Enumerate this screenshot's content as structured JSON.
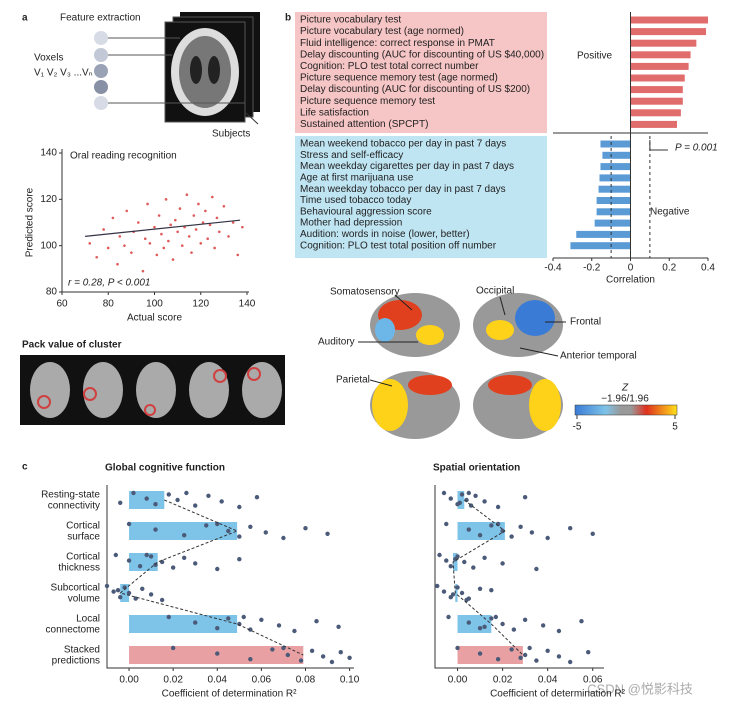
{
  "panel_labels": [
    "a",
    "b",
    "c"
  ],
  "feature_extraction": {
    "title": "Feature extraction",
    "voxels_label": "Voxels",
    "voxel_series": "V₁ V₂ V₃ ...Vₙ",
    "subjects_label": "Subjects"
  },
  "cluster_title": "Pack value of cluster",
  "brain_map": {
    "labels": [
      "Somatosensory",
      "Occipital",
      "Frontal",
      "Auditory",
      "Anterior temporal",
      "Parietal"
    ],
    "colorbar": {
      "title": "Z",
      "threshold_label": "−1.96/1.96",
      "ticks": [
        -5,
        5
      ]
    }
  },
  "watermark": "CSDN @悦影科技",
  "chart_data": [
    {
      "type": "scatter",
      "title": "Oral reading recognition",
      "x_label": "Actual score",
      "y_label": "Predicted score",
      "annotation": "r = 0.28, P < 0.001",
      "color": "#e05a5a",
      "x": [
        72,
        75,
        78,
        80,
        82,
        84,
        85,
        87,
        88,
        90,
        91,
        93,
        95,
        96,
        97,
        98,
        100,
        101,
        102,
        103,
        104,
        105,
        106,
        107,
        108,
        109,
        110,
        111,
        112,
        113,
        114,
        115,
        116,
        117,
        118,
        119,
        120,
        121,
        122,
        123,
        124,
        125,
        126,
        127,
        128,
        130,
        132,
        134,
        136,
        138
      ],
      "y": [
        101,
        95,
        107,
        99,
        112,
        92,
        104,
        100,
        115,
        97,
        106,
        110,
        89,
        103,
        118,
        101,
        108,
        96,
        113,
        105,
        99,
        120,
        102,
        109,
        94,
        111,
        106,
        116,
        100,
        108,
        122,
        104,
        97,
        113,
        107,
        118,
        101,
        110,
        115,
        103,
        109,
        121,
        99,
        112,
        106,
        117,
        104,
        110,
        96,
        108
      ],
      "fit_line": {
        "x": [
          70,
          137
        ],
        "y": [
          104,
          111
        ]
      },
      "xlim": [
        60,
        140
      ],
      "ylim": [
        80,
        140
      ],
      "xticks": [
        60,
        80,
        100,
        120,
        140
      ],
      "yticks": [
        80,
        100,
        120,
        140
      ]
    },
    {
      "type": "hbar",
      "x_label": "Correlation",
      "group_labels": [
        "Positive",
        "Negative"
      ],
      "annotation": "P = 0.001",
      "colors": {
        "positive": "#e06c6c",
        "negative": "#5b9bd5"
      },
      "categories": [
        "Picture vocabulary test",
        "Picture vocabulary test (age normed)",
        "Fluid intelligence: correct response in PMAT",
        "Delay discounting (AUC for discounting of US $40,000)",
        "Cognition: PLO test total correct number",
        "Picture sequence memory test (age normed)",
        "Delay discounting (AUC for discounting of US $200)",
        "Picture sequence memory test",
        "Life satisfaction",
        "Sustained attention (SPCPT)",
        "Mean weekend tobacco per day in past 7 days",
        "Stress and self-efficacy",
        "Mean weekday cigarettes per day in past 7 days",
        "Age at first marijuana use",
        "Mean weekday tobacco per day in past 7 days",
        "Time used tobacco today",
        "Behavioural aggression score",
        "Mother had depression",
        "Audition: words in noise (lower, better)",
        "Cognition: PLO test total position off number"
      ],
      "values": [
        0.4,
        0.39,
        0.34,
        0.31,
        0.3,
        0.28,
        0.27,
        0.27,
        0.26,
        0.24,
        -0.155,
        -0.145,
        -0.155,
        -0.16,
        -0.165,
        -0.175,
        -0.175,
        -0.185,
        -0.28,
        -0.31
      ],
      "significance_thresholds": [
        -0.1,
        0.1
      ],
      "xlim": [
        -0.4,
        0.4
      ],
      "xticks": [
        -0.4,
        -0.2,
        0,
        0.2,
        0.4
      ]
    },
    {
      "type": "pointbar",
      "title": "Global cognitive function",
      "x_label": "Coefficient of determination R²",
      "colors": {
        "bar": "#7ec3e8",
        "stacked": "#e8a0a3",
        "point": "#4a5a78"
      },
      "categories": [
        [
          "Resting-state",
          "connectivity"
        ],
        [
          "Cortical",
          "surface"
        ],
        [
          "Cortical",
          "thickness"
        ],
        [
          "Subcortical",
          "volume"
        ],
        [
          "Local",
          "connectome"
        ],
        [
          "Stacked",
          "predictions"
        ]
      ],
      "values": [
        0.016,
        0.049,
        0.013,
        -0.004,
        0.049,
        0.079
      ],
      "points": [
        [
          0.002,
          0.008,
          0.012,
          0.018,
          0.022,
          0.03,
          0.036,
          0.042,
          0.05,
          0.058,
          -0.004,
          0.026
        ],
        [
          0.0,
          0.012,
          0.025,
          0.035,
          0.045,
          0.05,
          0.055,
          0.062,
          0.07,
          0.08,
          0.09,
          0.04
        ],
        [
          -0.006,
          0.0,
          0.005,
          0.01,
          0.015,
          0.02,
          0.025,
          0.03,
          0.04,
          0.05,
          0.012,
          0.008
        ],
        [
          -0.01,
          -0.007,
          -0.004,
          -0.002,
          0.0,
          0.003,
          0.006,
          0.01,
          0.015,
          -0.005
        ],
        [
          0.018,
          0.03,
          0.04,
          0.045,
          0.05,
          0.055,
          0.06,
          0.068,
          0.075,
          0.085,
          0.095,
          0.052
        ],
        [
          0.02,
          0.04,
          0.055,
          0.065,
          0.072,
          0.078,
          0.083,
          0.088,
          0.092,
          0.096,
          0.1,
          0.07
        ]
      ],
      "xlim": [
        -0.01,
        0.102
      ],
      "xticks": [
        {
          "value": 0,
          "label": "0.00"
        },
        {
          "value": 0.02,
          "label": "0.02"
        },
        {
          "value": 0.04,
          "label": "0.04"
        },
        {
          "value": 0.06,
          "label": "0.06"
        },
        {
          "value": 0.08,
          "label": "0.08"
        },
        {
          "value": 0.1,
          "label": "0.10"
        }
      ]
    },
    {
      "type": "pointbar",
      "title": "Spatial orientation",
      "x_label": "Coefficient of determination R²",
      "colors": {
        "bar": "#7ec3e8",
        "stacked": "#e8a0a3",
        "point": "#4a5a78"
      },
      "categories": [
        [
          "Resting-state",
          "connectivity"
        ],
        [
          "Cortical",
          "surface"
        ],
        [
          "Cortical",
          "thickness"
        ],
        [
          "Subcortical",
          "volume"
        ],
        [
          "Local",
          "connectome"
        ],
        [
          "Stacked",
          "predictions"
        ]
      ],
      "values": [
        0.003,
        0.021,
        -0.002,
        -0.001,
        0.015,
        0.029
      ],
      "points": [
        [
          -0.006,
          -0.003,
          0,
          0.002,
          0.004,
          0.006,
          0.008,
          0.012,
          0.018,
          0.03,
          0.001,
          0.005
        ],
        [
          -0.005,
          0.005,
          0.01,
          0.015,
          0.02,
          0.024,
          0.028,
          0.033,
          0.04,
          0.05,
          0.06,
          0.018
        ],
        [
          -0.008,
          -0.005,
          -0.003,
          0,
          0.003,
          0.007,
          0.012,
          0.02,
          0.035,
          -0.001
        ],
        [
          -0.009,
          -0.006,
          -0.003,
          0,
          0.002,
          0.005,
          0.01,
          -0.002,
          0.004,
          0.015
        ],
        [
          -0.004,
          0.005,
          0.01,
          0.015,
          0.02,
          0.025,
          0.03,
          0.038,
          0.045,
          0.055,
          0.012,
          0.017
        ],
        [
          0.0,
          0.01,
          0.018,
          0.024,
          0.03,
          0.035,
          0.04,
          0.045,
          0.05,
          0.058,
          0.028,
          0.032
        ]
      ],
      "xlim": [
        -0.01,
        0.065
      ],
      "xticks": [
        {
          "value": 0,
          "label": "0.00"
        },
        {
          "value": 0.02,
          "label": "0.02"
        },
        {
          "value": 0.04,
          "label": "0.04"
        },
        {
          "value": 0.06,
          "label": "0.06"
        }
      ]
    }
  ]
}
